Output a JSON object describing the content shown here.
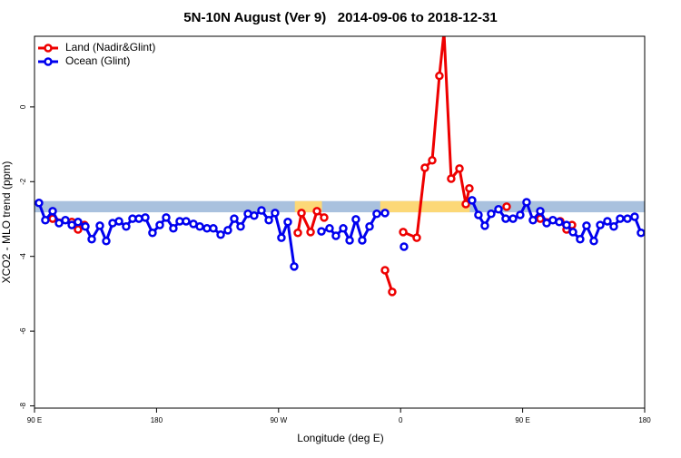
{
  "chart_data": {
    "type": "line",
    "title": "5N-10N August (Ver 9)   2014-09-06 to 2018-12-31",
    "xlabel": "Longitude (deg E)",
    "ylabel": "XCO2 - MLO trend (ppm)",
    "xlim": [
      90,
      540
    ],
    "xticks": [
      {
        "value": 90,
        "label": "90 E"
      },
      {
        "value": 180,
        "label": "180"
      },
      {
        "value": 270,
        "label": "90 W"
      },
      {
        "value": 360,
        "label": "0"
      },
      {
        "value": 450,
        "label": "90 E"
      },
      {
        "value": 540,
        "label": "180"
      }
    ],
    "ylim": [
      -8.06,
      1.89
    ],
    "yticks": [
      -8,
      -6,
      -4,
      -2,
      0
    ],
    "legend": "topleft",
    "band": {
      "y": [
        -2.82,
        -2.52
      ],
      "color": "#a9c1de"
    },
    "highlights": [
      {
        "x": [
          282,
          302
        ],
        "color": "#fcd877"
      },
      {
        "x": [
          345,
          411
        ],
        "color": "#fcd877"
      }
    ],
    "series": [
      {
        "name": "Land (Nadir&Glint)",
        "color": "#ee0000",
        "x": [
          103.4,
          117.5,
          122.1,
          126.8,
          null,
          284.2,
          286.9,
          293.6,
          298.3,
          303.6,
          null,
          348.5,
          353.8,
          null,
          361.9,
          371.9,
          377.9,
          383.3,
          388.6,
          392.0,
          397.3,
          403.4,
          408.1,
          410.7,
          null,
          438.2,
          null,
          463.0,
          477.7,
          482.4,
          486.4
        ],
        "values": [
          -2.99,
          -3.08,
          -3.28,
          -3.16,
          null,
          -3.37,
          -2.84,
          -3.35,
          -2.79,
          -2.96,
          null,
          -4.37,
          -4.95,
          null,
          -3.35,
          -3.5,
          -1.63,
          -1.43,
          0.83,
          2.0,
          -1.92,
          -1.65,
          -2.6,
          -2.18,
          null,
          -2.67,
          null,
          -2.99,
          -3.06,
          -3.28,
          -3.16
        ]
      },
      {
        "name": "Ocean (Glint)",
        "color": "#0000ee",
        "x": [
          93.3,
          98.0,
          103.4,
          108.1,
          112.8,
          117.5,
          122.1,
          127.5,
          132.2,
          138.2,
          142.9,
          147.6,
          152.3,
          157.6,
          162.3,
          167.0,
          171.7,
          177.0,
          182.4,
          187.1,
          192.4,
          197.1,
          201.8,
          207.2,
          211.9,
          217.2,
          221.9,
          227.3,
          232.6,
          237.3,
          242.0,
          247.4,
          252.0,
          257.4,
          262.8,
          267.4,
          272.1,
          276.8,
          281.5,
          null,
          301.6,
          307.6,
          312.3,
          317.7,
          322.4,
          327.0,
          331.7,
          337.1,
          342.4,
          348.5,
          null,
          362.5,
          null,
          412.7,
          417.4,
          422.1,
          426.8,
          432.2,
          437.5,
          442.9,
          448.2,
          452.9,
          457.6,
          463.0,
          467.7,
          472.3,
          477.0,
          482.4,
          487.1,
          492.4,
          497.1,
          502.5,
          507.2,
          512.5,
          517.2,
          521.9,
          527.3,
          532.6,
          537.3
        ],
        "values": [
          -2.57,
          -3.03,
          -2.79,
          -3.11,
          -3.03,
          -3.16,
          -3.08,
          -3.2,
          -3.54,
          -3.18,
          -3.59,
          -3.11,
          -3.06,
          -3.2,
          -2.99,
          -2.99,
          -2.96,
          -3.37,
          -3.16,
          -2.96,
          -3.25,
          -3.06,
          -3.06,
          -3.13,
          -3.2,
          -3.25,
          -3.25,
          -3.42,
          -3.3,
          -2.99,
          -3.2,
          -2.86,
          -2.91,
          -2.77,
          -3.03,
          -2.84,
          -3.5,
          -3.08,
          -4.27,
          null,
          -3.33,
          -3.25,
          -3.45,
          -3.25,
          -3.57,
          -3.01,
          -3.57,
          -3.2,
          -2.86,
          -2.84,
          null,
          -3.74,
          null,
          -2.5,
          -2.89,
          -3.18,
          -2.86,
          -2.74,
          -2.99,
          -2.99,
          -2.89,
          -2.55,
          -3.03,
          -2.79,
          -3.11,
          -3.03,
          -3.08,
          -3.16,
          -3.35,
          -3.54,
          -3.18,
          -3.59,
          -3.16,
          -3.06,
          -3.2,
          -2.99,
          -2.99,
          -2.94,
          -3.37
        ]
      }
    ]
  }
}
